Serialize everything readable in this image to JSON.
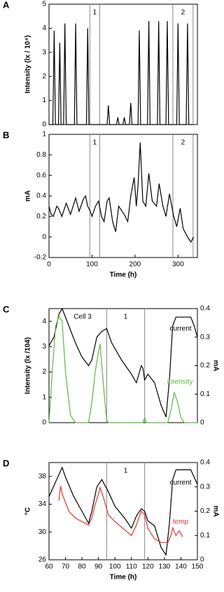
{
  "chart_data": [
    {
      "type": "line",
      "panel": "A",
      "ylabel": "Intensity (lx / 10⁴)",
      "xlim": [
        0,
        345
      ],
      "ylim": [
        0,
        5
      ],
      "yticks": [
        0,
        1,
        2,
        3,
        4,
        5
      ],
      "regions": [
        {
          "label": "1",
          "from": 95,
          "to": 118
        },
        {
          "label": "2",
          "from": 288,
          "to": 335
        }
      ],
      "series": [
        {
          "color": "#000000",
          "x": [
            0,
            9,
            12,
            15,
            22,
            25,
            28,
            34,
            37,
            40,
            59,
            62,
            65,
            87,
            90,
            93,
            135,
            138,
            141,
            157,
            160,
            163,
            172,
            175,
            178,
            187,
            190,
            193,
            207,
            210,
            213,
            229,
            232,
            235,
            252,
            255,
            258,
            272,
            275,
            278,
            297,
            300,
            303,
            319,
            322,
            325,
            335
          ],
          "values": [
            0,
            0,
            3.9,
            0,
            0,
            3.4,
            0,
            0,
            4.2,
            0,
            0,
            4.2,
            0,
            0,
            4.0,
            0,
            0,
            0.8,
            0,
            0,
            0.3,
            0,
            0,
            0.3,
            0,
            0,
            0.9,
            0,
            0,
            3.9,
            0,
            0,
            4.3,
            0,
            0,
            4.3,
            0,
            0,
            4.3,
            0,
            0,
            4.2,
            0,
            0,
            4.2,
            0,
            0
          ]
        }
      ]
    },
    {
      "type": "line",
      "panel": "B",
      "ylabel": "mA",
      "xlabel": "Time (h)",
      "xlim": [
        0,
        345
      ],
      "xticks": [
        0,
        100,
        200,
        300
      ],
      "ylim": [
        -0.2,
        1
      ],
      "yticks": [
        -0.2,
        0,
        0.2,
        0.4,
        0.6,
        0.8,
        1
      ],
      "regions": [
        {
          "label": "1",
          "from": 95,
          "to": 118
        },
        {
          "label": "2",
          "from": 288,
          "to": 335
        }
      ],
      "series": [
        {
          "color": "#000000",
          "x": [
            0,
            5,
            10,
            18,
            22,
            30,
            40,
            50,
            62,
            70,
            80,
            85,
            90,
            96,
            100,
            108,
            115,
            122,
            128,
            135,
            140,
            148,
            155,
            162,
            175,
            183,
            190,
            198,
            203,
            207,
            212,
            218,
            225,
            232,
            240,
            250,
            256,
            265,
            272,
            280,
            290,
            297,
            305,
            312,
            322,
            330,
            336
          ],
          "values": [
            0.3,
            0.22,
            0.2,
            0.3,
            0.28,
            0.2,
            0.33,
            0.22,
            0.38,
            0.25,
            0.37,
            0.4,
            0.3,
            0.25,
            0.2,
            0.3,
            0.35,
            0.2,
            0.15,
            0.35,
            0.38,
            0.15,
            0.05,
            0.3,
            0.22,
            0.15,
            0.4,
            0.58,
            0.3,
            0.5,
            0.92,
            0.35,
            0.3,
            0.62,
            0.35,
            0.3,
            0.52,
            0.3,
            0.2,
            0.42,
            0.2,
            0.1,
            0.28,
            0.08,
            0.0,
            -0.05,
            0.0
          ]
        }
      ]
    },
    {
      "type": "line",
      "panel": "C",
      "ylabel": "Intensity (lx /104)",
      "y2label": "mA",
      "annotations": [
        "Cell 3"
      ],
      "xlim": [
        60,
        150
      ],
      "ylim": [
        0,
        4.5
      ],
      "yticks": [
        0,
        1,
        2,
        3,
        4
      ],
      "y2lim": [
        0,
        0.4
      ],
      "y2ticks": [
        0,
        0.1,
        0.2,
        0.3,
        0.4
      ],
      "regions": [
        {
          "label": "1",
          "from": 95,
          "to": 118
        }
      ],
      "series": [
        {
          "name": "current",
          "color": "#000000",
          "axis": "y2",
          "x": [
            60,
            63,
            66,
            68,
            72,
            76,
            80,
            84,
            86,
            89,
            92,
            95,
            98,
            104,
            110,
            113,
            116,
            117,
            118,
            120,
            124,
            128,
            131,
            133,
            135,
            137,
            142,
            146,
            148,
            150
          ],
          "values": [
            0.27,
            0.3,
            0.38,
            0.4,
            0.34,
            0.28,
            0.23,
            0.2,
            0.22,
            0.3,
            0.32,
            0.33,
            0.28,
            0.22,
            0.17,
            0.14,
            0.2,
            0.19,
            0.15,
            0.17,
            0.14,
            0.06,
            0.02,
            0.15,
            0.34,
            0.37,
            0.37,
            0.37,
            0.34,
            0.3
          ]
        },
        {
          "name": "intensity",
          "color": "#5cb83c",
          "x": [
            60,
            62,
            64,
            66,
            68,
            70,
            73,
            76,
            84,
            86,
            88,
            90,
            91,
            93,
            95,
            96,
            117,
            118,
            119,
            132,
            134,
            136,
            138,
            140,
            142,
            150
          ],
          "values": [
            0,
            2.0,
            3.8,
            4.2,
            4.0,
            2.0,
            0.3,
            0,
            0,
            0.8,
            2.0,
            2.8,
            3.1,
            1.5,
            0.1,
            0,
            0,
            0.2,
            0,
            0,
            0.5,
            1.2,
            0.8,
            0.2,
            0,
            0
          ]
        }
      ]
    },
    {
      "type": "line",
      "panel": "D",
      "ylabel": "°C",
      "y2label": "mA",
      "xlabel": "Time (h)",
      "xlim": [
        60,
        150
      ],
      "xticks": [
        60,
        70,
        80,
        90,
        100,
        110,
        120,
        130,
        140,
        150
      ],
      "ylim": [
        26,
        40
      ],
      "yticks": [
        26,
        30,
        34,
        38
      ],
      "y2lim": [
        0,
        0.4
      ],
      "y2ticks": [
        0,
        0.1,
        0.2,
        0.3,
        0.4
      ],
      "regions": [
        {
          "label": "1",
          "from": 95,
          "to": 118
        }
      ],
      "series": [
        {
          "name": "current",
          "color": "#000000",
          "axis": "y2",
          "x": [
            60,
            64,
            68,
            70,
            75,
            80,
            84,
            86,
            89,
            92,
            96,
            100,
            106,
            110,
            113,
            116,
            118,
            120,
            124,
            128,
            131,
            133,
            135,
            137,
            142,
            146,
            148,
            150
          ],
          "values": [
            0.26,
            0.32,
            0.38,
            0.34,
            0.26,
            0.2,
            0.15,
            0.2,
            0.3,
            0.33,
            0.28,
            0.22,
            0.17,
            0.13,
            0.18,
            0.21,
            0.2,
            0.16,
            0.14,
            0.05,
            0.02,
            0.15,
            0.33,
            0.37,
            0.37,
            0.37,
            0.34,
            0.31
          ]
        },
        {
          "name": "temp",
          "color": "#e8322b",
          "x": [
            66,
            67,
            68,
            72,
            76,
            80,
            84,
            86,
            88,
            90,
            91,
            93,
            96,
            100,
            105,
            110,
            113,
            116,
            118,
            120,
            124,
            128,
            132,
            134,
            135,
            137,
            139,
            141
          ],
          "values": [
            34.5,
            36.6,
            35.5,
            33,
            32,
            31.5,
            31,
            32,
            34,
            35.5,
            36.4,
            35,
            32.5,
            31.5,
            30.5,
            29.5,
            31,
            33,
            32.5,
            30.5,
            29,
            28.5,
            28.5,
            29.5,
            30.6,
            29.5,
            30.2,
            29.3
          ]
        }
      ]
    }
  ]
}
